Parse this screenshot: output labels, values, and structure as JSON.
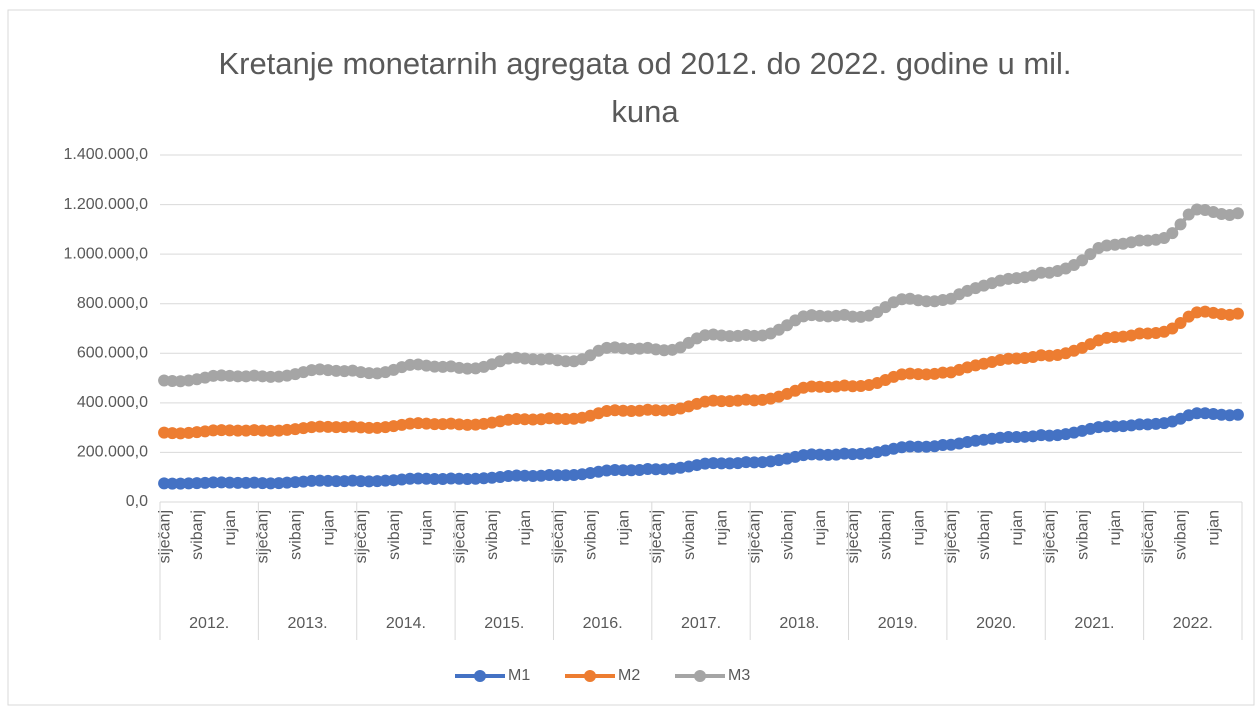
{
  "chart_data": {
    "type": "line",
    "title": "Kretanje monetarnih agregata od 2012. do 2022. godine u mil. kuna",
    "categories": [
      "siječanj",
      null,
      null,
      null,
      "svibanj",
      null,
      null,
      null,
      "rujan",
      null,
      null,
      null,
      "siječanj",
      null,
      null,
      null,
      "svibanj",
      null,
      null,
      null,
      "rujan",
      null,
      null,
      null,
      "siječanj",
      null,
      null,
      null,
      "svibanj",
      null,
      null,
      null,
      "rujan",
      null,
      null,
      null,
      "siječanj",
      null,
      null,
      null,
      "svibanj",
      null,
      null,
      null,
      "rujan",
      null,
      null,
      null,
      "siječanj",
      null,
      null,
      null,
      "svibanj",
      null,
      null,
      null,
      "rujan",
      null,
      null,
      null,
      "siječanj",
      null,
      null,
      null,
      "svibanj",
      null,
      null,
      null,
      "rujan",
      null,
      null,
      null,
      "siječanj",
      null,
      null,
      null,
      "svibanj",
      null,
      null,
      null,
      "rujan",
      null,
      null,
      null,
      "siječanj",
      null,
      null,
      null,
      "svibanj",
      null,
      null,
      null,
      "rujan",
      null,
      null,
      null,
      "siječanj",
      null,
      null,
      null,
      "svibanj",
      null,
      null,
      null,
      "rujan",
      null,
      null,
      null,
      "siječanj",
      null,
      null,
      null,
      "svibanj",
      null,
      null,
      null,
      "rujan",
      null,
      null,
      null,
      "siječanj",
      null,
      null,
      null,
      "svibanj",
      null,
      null,
      null,
      "rujan",
      null,
      null,
      null
    ],
    "category_groups": [
      "2012.",
      "2013.",
      "2014.",
      "2015.",
      "2016.",
      "2017.",
      "2018.",
      "2019.",
      "2020.",
      "2021.",
      "2022."
    ],
    "series": [
      {
        "name": "M1",
        "color": "#4472c4",
        "values": [
          75000,
          74000,
          74000,
          75000,
          76000,
          77000,
          79000,
          79000,
          78000,
          77000,
          77000,
          78000,
          76000,
          75000,
          76000,
          78000,
          80000,
          82000,
          85000,
          86000,
          85000,
          84000,
          84000,
          86000,
          84000,
          83000,
          84000,
          86000,
          88000,
          91000,
          94000,
          95000,
          94000,
          93000,
          93000,
          95000,
          94000,
          93000,
          94000,
          96000,
          98000,
          101000,
          105000,
          107000,
          106000,
          105000,
          106000,
          109000,
          108000,
          108000,
          109000,
          112000,
          117000,
          122000,
          127000,
          129000,
          128000,
          128000,
          129000,
          133000,
          132000,
          132000,
          134000,
          138000,
          143000,
          149000,
          155000,
          157000,
          156000,
          156000,
          157000,
          161000,
          160000,
          161000,
          164000,
          169000,
          175000,
          182000,
          189000,
          192000,
          191000,
          190000,
          191000,
          195000,
          193000,
          194000,
          196000,
          201000,
          208000,
          215000,
          221000,
          224000,
          223000,
          223000,
          225000,
          230000,
          231000,
          236000,
          242000,
          247000,
          251000,
          255000,
          259000,
          262000,
          262000,
          263000,
          265000,
          270000,
          268000,
          270000,
          274000,
          280000,
          287000,
          295000,
          302000,
          305000,
          305000,
          306000,
          309000,
          313000,
          313000,
          315000,
          318000,
          325000,
          336000,
          350000,
          358000,
          358000,
          355000,
          352000,
          350000,
          352000
        ]
      },
      {
        "name": "M2",
        "color": "#ed7d31",
        "values": [
          280000,
          278000,
          277000,
          279000,
          282000,
          285000,
          289000,
          290000,
          289000,
          288000,
          288000,
          290000,
          288000,
          287000,
          288000,
          291000,
          294000,
          298000,
          302000,
          304000,
          303000,
          302000,
          302000,
          304000,
          301000,
          299000,
          299000,
          302000,
          306000,
          311000,
          316000,
          318000,
          316000,
          314000,
          314000,
          316000,
          313000,
          311000,
          312000,
          315000,
          320000,
          326000,
          332000,
          335000,
          334000,
          333000,
          334000,
          338000,
          336000,
          335000,
          336000,
          340000,
          348000,
          358000,
          367000,
          370000,
          368000,
          367000,
          368000,
          372000,
          370000,
          369000,
          371000,
          377000,
          386000,
          396000,
          405000,
          409000,
          407000,
          407000,
          409000,
          413000,
          410000,
          412000,
          417000,
          425000,
          436000,
          449000,
          461000,
          466000,
          465000,
          464000,
          466000,
          470000,
          467000,
          468000,
          472000,
          480000,
          492000,
          505000,
          515000,
          518000,
          516000,
          515000,
          517000,
          522000,
          523000,
          533000,
          543000,
          551000,
          558000,
          565000,
          573000,
          578000,
          579000,
          581000,
          585000,
          592000,
          590000,
          593000,
          600000,
          610000,
          622000,
          637000,
          652000,
          662000,
          665000,
          667000,
          672000,
          680000,
          680000,
          682000,
          687000,
          700000,
          722000,
          748000,
          765000,
          768000,
          763000,
          758000,
          755000,
          760000
        ]
      },
      {
        "name": "M3",
        "color": "#a5a5a5",
        "values": [
          490000,
          488000,
          487000,
          490000,
          495000,
          502000,
          509000,
          511000,
          509000,
          507000,
          507000,
          510000,
          507000,
          505000,
          506000,
          510000,
          516000,
          524000,
          532000,
          535000,
          532000,
          529000,
          528000,
          530000,
          524000,
          520000,
          519000,
          524000,
          533000,
          544000,
          553000,
          555000,
          550000,
          546000,
          545000,
          547000,
          541000,
          538000,
          539000,
          545000,
          556000,
          568000,
          579000,
          582000,
          579000,
          576000,
          575000,
          578000,
          572000,
          568000,
          568000,
          576000,
          592000,
          610000,
          622000,
          624000,
          620000,
          618000,
          619000,
          622000,
          616000,
          612000,
          614000,
          624000,
          642000,
          660000,
          673000,
          676000,
          672000,
          669000,
          670000,
          674000,
          670000,
          672000,
          680000,
          695000,
          713000,
          733000,
          749000,
          754000,
          751000,
          749000,
          751000,
          755000,
          748000,
          747000,
          752000,
          766000,
          786000,
          806000,
          818000,
          820000,
          814000,
          810000,
          810000,
          815000,
          820000,
          838000,
          852000,
          863000,
          873000,
          883000,
          893000,
          900000,
          903000,
          907000,
          914000,
          925000,
          925000,
          932000,
          942000,
          956000,
          975000,
          1000000,
          1025000,
          1035000,
          1038000,
          1042000,
          1048000,
          1055000,
          1055000,
          1058000,
          1065000,
          1085000,
          1120000,
          1160000,
          1180000,
          1178000,
          1170000,
          1162000,
          1158000,
          1165000
        ]
      }
    ],
    "ylim": [
      0,
      1400000
    ],
    "yticks": [
      {
        "value": 0,
        "label": "0,0"
      },
      {
        "value": 200000,
        "label": "200.000,0"
      },
      {
        "value": 400000,
        "label": "400.000,0"
      },
      {
        "value": 600000,
        "label": "600.000,0"
      },
      {
        "value": 800000,
        "label": "800.000,0"
      },
      {
        "value": 1000000,
        "label": "1.000.000,0"
      },
      {
        "value": 1200000,
        "label": "1.200.000,0"
      },
      {
        "value": 1400000,
        "label": "1.400.000,0"
      }
    ],
    "grid": true,
    "legend": "bottom"
  }
}
